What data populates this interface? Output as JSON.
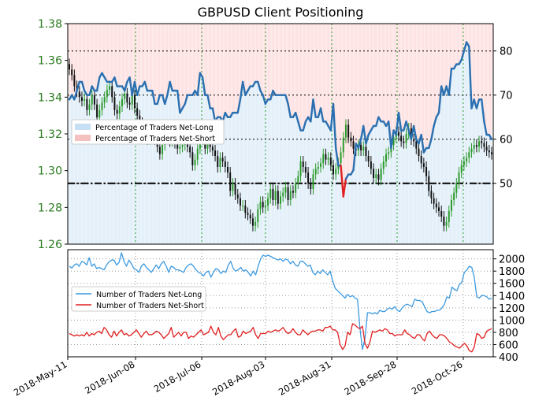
{
  "chart_data": {
    "type": "line",
    "title": "GBPUSD Client Positioning",
    "x_dates": [
      "2018-May-11",
      "2018-Jun-08",
      "2018-Jul-06",
      "2018-Aug-03",
      "2018-Aug-31",
      "2018-Sep-28",
      "2018-Oct-26"
    ],
    "top_panel": {
      "price_axis": {
        "ylim": [
          1.26,
          1.38
        ],
        "ticks": [
          "1.26",
          "1.28",
          "1.30",
          "1.32",
          "1.34",
          "1.36",
          "1.38"
        ],
        "color": "#2a7a1f"
      },
      "pct_axis": {
        "ylim": [
          36.2,
          86.2
        ],
        "ticks": [
          "50",
          "60",
          "70",
          "80"
        ]
      },
      "legend": {
        "position": "center-left",
        "items": [
          {
            "label": "Percentage of Traders Net-Long",
            "color": "#c6dff5"
          },
          {
            "label": "Percentage of Traders Net-Short",
            "color": "#f5c0c0"
          }
        ]
      },
      "reference_line": {
        "pct": 50,
        "style": "dash-dot",
        "color": "#000000"
      },
      "net_long_pct_series": {
        "name": "Percentage of Traders Net-Long",
        "colors": {
          "above_50": "#2a6fb0",
          "below_50": "#e02020"
        },
        "values": [
          69,
          70,
          69,
          71,
          73,
          73,
          71,
          70,
          70,
          72,
          71,
          71,
          74,
          75,
          74,
          73,
          73,
          73,
          74,
          72,
          72,
          72,
          71,
          73,
          74,
          70,
          73,
          70,
          72,
          72,
          73,
          71,
          71,
          71,
          68,
          68,
          70,
          70,
          68,
          70,
          73,
          71,
          71,
          71,
          66,
          67,
          68,
          70,
          70,
          70,
          71,
          70,
          75,
          74,
          70,
          70,
          67,
          67,
          64,
          65,
          65,
          64,
          66,
          65,
          65,
          66,
          66,
          66,
          69,
          73,
          70,
          71,
          72,
          72,
          73,
          73,
          71,
          70,
          68,
          69,
          69,
          71,
          70,
          70,
          70,
          70,
          70,
          68,
          65,
          65,
          66,
          64,
          62,
          62,
          64,
          65,
          64,
          69,
          65,
          65,
          67,
          64,
          64,
          63,
          62,
          68,
          58,
          54,
          54,
          47,
          51,
          52,
          52,
          53,
          59,
          58,
          60,
          63,
          59,
          61,
          62,
          63,
          63,
          65,
          64,
          64,
          63,
          64,
          58,
          62,
          61,
          66,
          62,
          62,
          64,
          62,
          60,
          63,
          60,
          59,
          61,
          57,
          58,
          58,
          60,
          63,
          65,
          66,
          72,
          70,
          72,
          70,
          76,
          76,
          77,
          77,
          78,
          80,
          82,
          81,
          67,
          69,
          67,
          69,
          69,
          64,
          61,
          61,
          60
        ],
        "note_ticks": []
      },
      "price_candles_close": [
        1.355,
        1.352,
        1.346,
        1.343,
        1.34,
        1.338,
        1.339,
        1.333,
        1.336,
        1.341,
        1.336,
        1.329,
        1.333,
        1.337,
        1.34,
        1.344,
        1.346,
        1.34,
        1.333,
        1.331,
        1.335,
        1.339,
        1.342,
        1.337,
        1.336,
        1.341,
        1.334,
        1.33,
        1.326,
        1.324,
        1.32,
        1.317,
        1.32,
        1.322,
        1.317,
        1.313,
        1.309,
        1.314,
        1.318,
        1.322,
        1.316,
        1.318,
        1.315,
        1.312,
        1.313,
        1.314,
        1.317,
        1.313,
        1.31,
        1.303,
        1.306,
        1.312,
        1.317,
        1.321,
        1.312,
        1.315,
        1.313,
        1.311,
        1.308,
        1.302,
        1.307,
        1.305,
        1.302,
        1.299,
        1.289,
        1.293,
        1.287,
        1.285,
        1.281,
        1.281,
        1.277,
        1.276,
        1.274,
        1.27,
        1.272,
        1.279,
        1.283,
        1.28,
        1.281,
        1.285,
        1.29,
        1.284,
        1.289,
        1.282,
        1.286,
        1.288,
        1.291,
        1.284,
        1.289,
        1.288,
        1.293,
        1.297,
        1.305,
        1.302,
        1.299,
        1.293,
        1.29,
        1.298,
        1.301,
        1.302,
        1.304,
        1.309,
        1.306,
        1.307,
        1.303,
        1.298,
        1.301,
        1.304,
        1.31,
        1.318,
        1.325,
        1.318,
        1.316,
        1.312,
        1.311,
        1.314,
        1.311,
        1.313,
        1.308,
        1.305,
        1.301,
        1.296,
        1.298,
        1.295,
        1.301,
        1.305,
        1.309,
        1.31,
        1.314,
        1.318,
        1.321,
        1.319,
        1.316,
        1.315,
        1.32,
        1.323,
        1.317,
        1.316,
        1.312,
        1.308,
        1.304,
        1.302,
        1.297,
        1.289,
        1.285,
        1.282,
        1.28,
        1.278,
        1.275,
        1.27,
        1.272,
        1.278,
        1.284,
        1.288,
        1.293,
        1.299,
        1.303,
        1.305,
        1.307,
        1.31,
        1.312,
        1.314,
        1.313,
        1.316,
        1.315,
        1.313,
        1.311,
        1.31,
        1.309
      ]
    },
    "bottom_panel": {
      "ylim": [
        400,
        2150
      ],
      "ticks": [
        "400",
        "600",
        "800",
        "1000",
        "1200",
        "1400",
        "1600",
        "1800",
        "2000"
      ],
      "legend": {
        "position": "center-left",
        "items": [
          {
            "label": "Number of Traders Net-Long",
            "color": "#3c9ae0"
          },
          {
            "label": "Number of Traders Net-Short",
            "color": "#e02020"
          }
        ]
      },
      "series": [
        {
          "name": "Number of Traders Net-Long",
          "color": "#3c9ae0",
          "values": [
            1880,
            1850,
            1900,
            1920,
            1880,
            1960,
            1940,
            1900,
            2020,
            1880,
            1920,
            1840,
            1860,
            1840,
            1820,
            1900,
            1950,
            1980,
            1980,
            1900,
            1940,
            2100,
            1960,
            1880,
            1980,
            1920,
            1840,
            1820,
            1780,
            1880,
            1920,
            1860,
            1820,
            1780,
            1840,
            1900,
            1840,
            1920,
            1960,
            1880,
            1780,
            1880,
            1860,
            1820,
            1820,
            1800,
            1780,
            1860,
            1900,
            1920,
            1880,
            1820,
            1780,
            1760,
            1720,
            1780,
            1800,
            1700,
            1780,
            1840,
            1820,
            1760,
            1800,
            1780,
            1900,
            1960,
            1840,
            1800,
            1820,
            1860,
            1800,
            1820,
            1780,
            1720,
            1800,
            1740,
            1880,
            2000,
            2060,
            2040,
            2060,
            2040,
            2020,
            2000,
            1980,
            2000,
            1960,
            2000,
            1980,
            1920,
            1960,
            1900,
            1880,
            1960,
            1960,
            1920,
            1880,
            1900,
            1780,
            1740,
            1800,
            1760,
            1820,
            1780,
            1740,
            1800,
            1640,
            1520,
            1480,
            1440,
            1400,
            1360,
            1420,
            1380,
            1400,
            1360,
            1340,
            860,
            520,
            700,
            1120,
            1120,
            1100,
            1120,
            1100,
            1160,
            1140,
            1140,
            1180,
            1200,
            1180,
            1220,
            1160,
            1140,
            1200,
            1240,
            1260,
            1240,
            1220,
            1340,
            1320,
            1320,
            1300,
            1220,
            1140,
            1120,
            1140,
            1140,
            1160,
            1160,
            1200,
            1260,
            1380,
            1360,
            1540,
            1500,
            1480,
            1580,
            1620,
            1780,
            1820,
            1880,
            1860,
            1700,
            1380,
            1360,
            1400,
            1400,
            1380,
            1340,
            1360
          ]
        },
        {
          "name": "Number of Traders Net-Short",
          "color": "#e02020",
          "values": [
            780,
            760,
            740,
            760,
            740,
            760,
            740,
            800,
            740,
            780,
            760,
            800,
            820,
            780,
            880,
            840,
            760,
            720,
            820,
            740,
            800,
            840,
            760,
            780,
            740,
            760,
            800,
            840,
            780,
            720,
            780,
            820,
            760,
            760,
            780,
            820,
            800,
            760,
            700,
            740,
            780,
            880,
            720,
            760,
            800,
            740,
            800,
            800,
            700,
            740,
            720,
            760,
            800,
            840,
            760,
            780,
            800,
            900,
            800,
            760,
            880,
            740,
            680,
            720,
            760,
            760,
            820,
            860,
            720,
            740,
            820,
            780,
            800,
            820,
            880,
            760,
            700,
            780,
            780,
            780,
            820,
            800,
            820,
            840,
            820,
            840,
            880,
            820,
            780,
            800,
            860,
            800,
            760,
            760,
            840,
            800,
            760,
            800,
            820,
            820,
            840,
            840,
            820,
            880,
            880,
            900,
            840,
            840,
            800,
            600,
            520,
            580,
            800,
            760,
            940,
            920,
            880,
            860,
            900,
            620,
            540,
            640,
            820,
            800,
            820,
            840,
            820,
            860,
            840,
            780,
            780,
            740,
            760,
            760,
            760,
            840,
            780,
            760,
            720,
            700,
            760,
            760,
            700,
            660,
            780,
            820,
            760,
            720,
            700,
            760,
            760,
            740,
            700,
            640,
            620,
            580,
            560,
            540,
            580,
            620,
            580,
            500,
            480,
            560,
            780,
            760,
            700,
            720,
            820,
            840,
            860
          ]
        }
      ]
    }
  }
}
